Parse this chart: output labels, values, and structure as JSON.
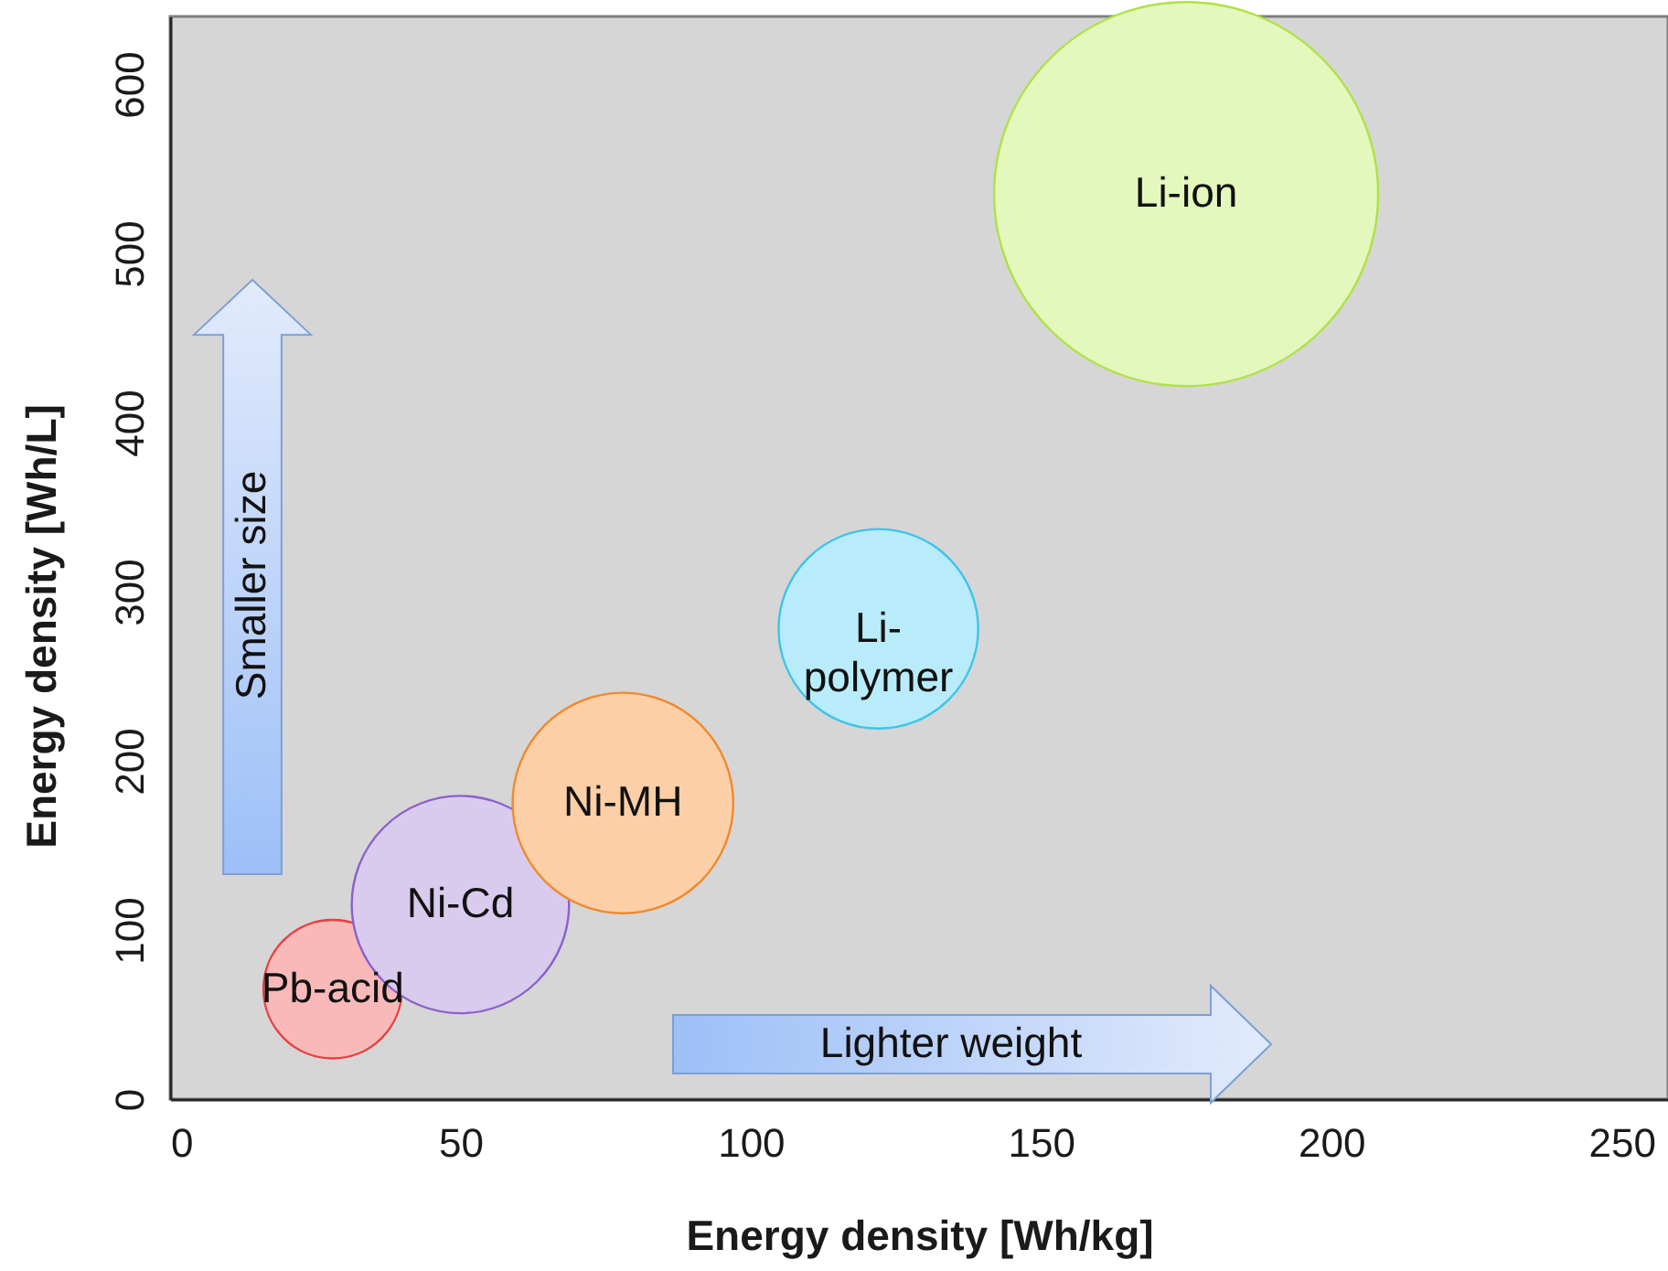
{
  "chart_data": {
    "type": "bubble",
    "xlabel": "Energy density  [Wh/kg]",
    "ylabel": "Energy density [Wh/L]",
    "xlim": [
      0,
      258
    ],
    "ylim": [
      0,
      640
    ],
    "xticks": [
      0,
      50,
      100,
      150,
      200,
      250
    ],
    "yticks": [
      0,
      100,
      200,
      300,
      400,
      500,
      600
    ],
    "annotations": [
      "Smaller size",
      "Lighter weight"
    ],
    "series": [
      {
        "name": "Pb-acid",
        "color": "#f9b9b9",
        "x": [
          28
        ],
        "values": [
          65
        ],
        "sizes": [
          0.13
        ]
      },
      {
        "name": "Ni-Cd",
        "color": "#d9cbee",
        "x": [
          50
        ],
        "values": [
          115
        ],
        "sizes": [
          0.32
        ]
      },
      {
        "name": "Ni-MH",
        "color": "#fdcfa6",
        "x": [
          78
        ],
        "values": [
          175
        ],
        "sizes": [
          0.33
        ]
      },
      {
        "name": "Li-polymer",
        "color": "#b9ecfb",
        "x": [
          122
        ],
        "values": [
          278
        ],
        "sizes": [
          0.27
        ]
      },
      {
        "name": "Li-ion",
        "color": "#e4f7bd",
        "x": [
          175
        ],
        "values": [
          535
        ],
        "sizes": [
          1
        ]
      }
    ]
  }
}
